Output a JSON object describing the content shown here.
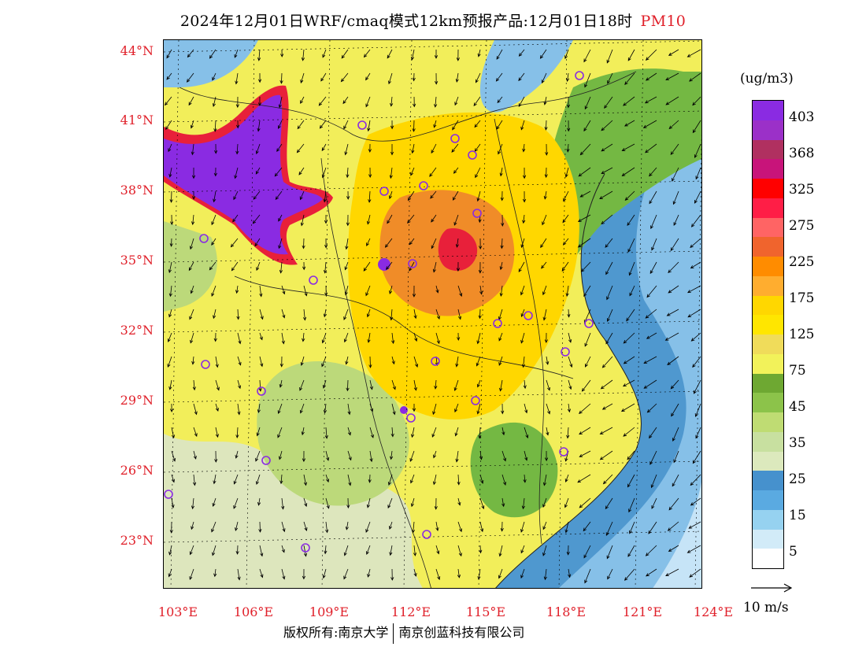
{
  "title": {
    "main": "2024年12月01日WRF/cmaq模式12km预报产品:12月01日18时",
    "pollutant": "PM10"
  },
  "map": {
    "latitude_labels": [
      "44°N",
      "41°N",
      "38°N",
      "35°N",
      "32°N",
      "29°N",
      "26°N",
      "23°N"
    ],
    "longitude_labels": [
      "103°E",
      "106°E",
      "109°E",
      "112°E",
      "115°E",
      "118°E",
      "121°E",
      "124°E"
    ],
    "colors": {
      "extreme": "#8a2be2",
      "very_high": "#e8203a",
      "high": "#f08c28",
      "elevated": "#ffd700",
      "moderate": "#f2ee5a",
      "low_green": "#74b843",
      "light_green": "#bcd97a",
      "pale": "#dde6bd",
      "sea_dark": "#4f98cf",
      "sea_mid": "#86c0e8",
      "sea_light": "#c6e4f7"
    }
  },
  "legend": {
    "unit": "(ug/m3)",
    "tick_labels": [
      "403",
      "368",
      "325",
      "275",
      "225",
      "175",
      "125",
      "75",
      "45",
      "35",
      "25",
      "15",
      "5"
    ],
    "swatch_colors": [
      "#8a2be2",
      "#9b30c8",
      "#b03060",
      "#c8147a",
      "#ff0000",
      "#ff1e46",
      "#ff6464",
      "#f0642d",
      "#ff8c00",
      "#ffad2f",
      "#ffd700",
      "#ffe600",
      "#f0dc5a",
      "#f2f25a",
      "#6ea832",
      "#8cc34a",
      "#bfdc73",
      "#c8e0a0",
      "#dce9bd",
      "#4691cd",
      "#5aaae1",
      "#96d2f0",
      "#d2ebf8",
      "#ffffff"
    ],
    "reference_vector": "10 m/s"
  },
  "footer": {
    "copyright": "版权所有:南京大学",
    "company": "南京创蓝科技有限公司"
  }
}
